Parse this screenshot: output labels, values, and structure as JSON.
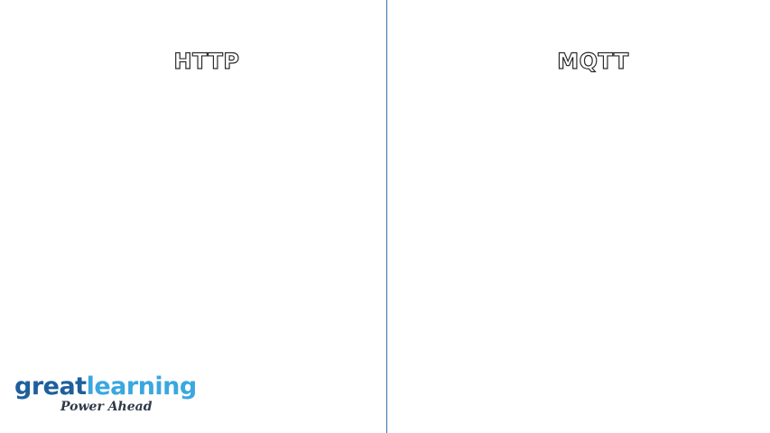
{
  "columns": {
    "left_title": "HTTP",
    "right_title": "MQTT"
  },
  "logo": {
    "word_part1": "great",
    "word_part2": "learning",
    "tagline": "Power Ahead"
  },
  "colors": {
    "divider": "#3d6fae",
    "logo_great": "#1f5f9c",
    "logo_learning": "#3aa7e0",
    "tagline": "#2e3a47"
  }
}
